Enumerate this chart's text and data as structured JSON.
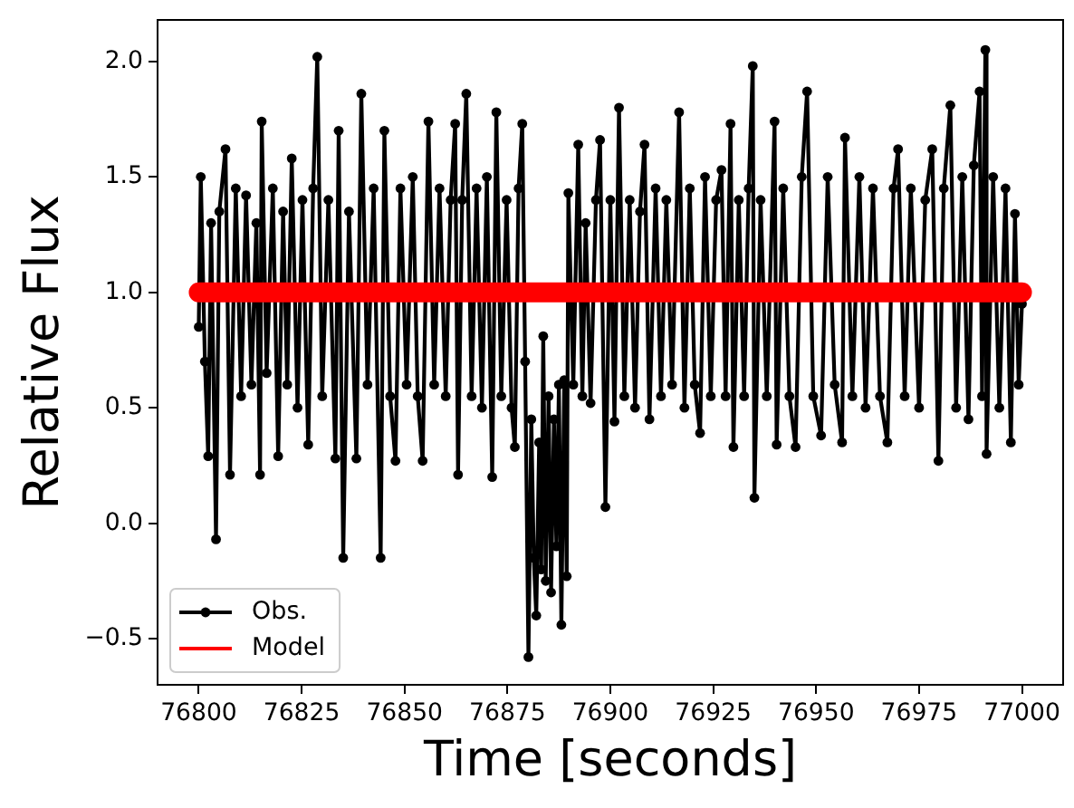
{
  "chart_data": {
    "type": "line",
    "xlabel": "Time [seconds]",
    "ylabel": "Relative Flux",
    "x": [
      76800,
      76800.5,
      76801.5,
      76802.3,
      76803,
      76804.2,
      76805,
      76806.5,
      76807.6,
      76809,
      76810.3,
      76811.5,
      76812.8,
      76814,
      76814.9,
      76815.3,
      76816.5,
      76818,
      76819.3,
      76820.5,
      76821.5,
      76822.6,
      76824,
      76825.2,
      76826.6,
      76827.8,
      76828.8,
      76830,
      76831.5,
      76833.2,
      76834,
      76835.1,
      76836.5,
      76838.3,
      76839.5,
      76841,
      76842.5,
      76844.2,
      76845.1,
      76846.5,
      76847.8,
      76849,
      76850.5,
      76852,
      76853.2,
      76854.4,
      76855.8,
      76857.2,
      76858.5,
      76860,
      76861.2,
      76862.3,
      76863,
      76864,
      76865,
      76866.3,
      76867.5,
      76868.8,
      76870,
      76871.3,
      76872.3,
      76873.5,
      76874.8,
      76876,
      76876.8,
      76877.7,
      76878.6,
      76879.3,
      76880.1,
      76880.8,
      76881.4,
      76882,
      76882.7,
      76883.2,
      76883.7,
      76884.3,
      76885,
      76885.6,
      76886.3,
      76886.9,
      76887.5,
      76888.1,
      76888.8,
      76889.4,
      76889.8,
      76891,
      76892.2,
      76893.2,
      76894,
      76895.2,
      76896.5,
      76897.5,
      76898.8,
      76900,
      76901,
      76902.1,
      76903.4,
      76904.7,
      76906,
      76907.2,
      76908.3,
      76909.5,
      76911,
      76912.3,
      76913.6,
      76915,
      76916.7,
      76918,
      76919.3,
      76920.5,
      76921.8,
      76923,
      76924.4,
      76925.7,
      76927,
      76928,
      76929.2,
      76929.9,
      76931.2,
      76932.5,
      76933.6,
      76934.6,
      76935,
      76936.5,
      76938,
      76939.9,
      76940.4,
      76942,
      76943.5,
      76945,
      76946.5,
      76947.8,
      76949.3,
      76951.2,
      76952.8,
      76954.5,
      76956.3,
      76957,
      76958.8,
      76960.5,
      76962,
      76963.8,
      76965.5,
      76967.3,
      76968.8,
      76969.9,
      76971.5,
      76973,
      76975,
      76976.5,
      76978.2,
      76979.7,
      76981,
      76982.6,
      76984,
      76985.5,
      76987,
      76988.3,
      76989.7,
      76990.3,
      76991.1,
      76991.4,
      76993,
      76994.5,
      76996,
      76997.3,
      76998.3,
      76999.2,
      77000
    ],
    "series": [
      {
        "name": "Obs.",
        "color": "#000000",
        "marker": "circle",
        "values": [
          0.85,
          1.5,
          0.7,
          0.29,
          1.3,
          -0.07,
          1.35,
          1.62,
          0.21,
          1.45,
          0.55,
          1.42,
          0.6,
          1.3,
          0.21,
          1.74,
          0.65,
          1.45,
          0.29,
          1.35,
          0.6,
          1.58,
          0.5,
          1.4,
          0.34,
          1.45,
          2.02,
          0.55,
          1.4,
          0.28,
          1.7,
          -0.15,
          1.35,
          0.28,
          1.86,
          0.6,
          1.45,
          -0.15,
          1.7,
          0.55,
          0.27,
          1.45,
          0.6,
          1.5,
          0.55,
          0.27,
          1.74,
          0.6,
          1.45,
          0.55,
          1.4,
          1.73,
          0.21,
          1.4,
          1.86,
          0.55,
          1.45,
          0.5,
          1.5,
          0.2,
          1.78,
          0.55,
          1.4,
          0.5,
          0.33,
          1.45,
          1.73,
          0.7,
          -0.58,
          0.45,
          -0.15,
          -0.4,
          0.35,
          -0.2,
          0.81,
          -0.25,
          0.55,
          -0.3,
          0.45,
          -0.1,
          0.6,
          -0.44,
          0.62,
          -0.23,
          1.43,
          0.6,
          1.64,
          0.55,
          1.3,
          0.52,
          1.4,
          1.66,
          0.07,
          1.4,
          0.44,
          1.8,
          0.55,
          1.4,
          0.5,
          1.35,
          1.64,
          0.45,
          1.45,
          0.55,
          1.4,
          0.6,
          1.78,
          0.5,
          1.45,
          0.6,
          0.39,
          1.5,
          0.55,
          1.4,
          1.53,
          0.55,
          1.73,
          0.33,
          1.4,
          0.55,
          1.45,
          1.98,
          0.11,
          1.4,
          0.55,
          1.74,
          0.34,
          1.45,
          0.55,
          0.33,
          1.5,
          1.87,
          0.55,
          0.38,
          1.5,
          0.6,
          0.35,
          1.67,
          0.55,
          1.5,
          0.5,
          1.45,
          0.55,
          0.35,
          1.45,
          1.62,
          0.55,
          1.45,
          0.5,
          1.4,
          1.62,
          0.27,
          1.45,
          1.81,
          0.5,
          1.5,
          0.45,
          1.55,
          1.87,
          0.55,
          2.05,
          0.3,
          1.5,
          0.5,
          1.45,
          0.35,
          1.34,
          0.6,
          0.95
        ]
      },
      {
        "name": "Model",
        "color": "#ff0000",
        "marker": "none",
        "x": [
          76800,
          77000
        ],
        "values": [
          1.0,
          1.0
        ]
      }
    ],
    "xlim": [
      76790,
      77010
    ],
    "xticks": [
      76800,
      76825,
      76850,
      76875,
      76900,
      76925,
      76950,
      76975,
      77000
    ],
    "ylim": [
      -0.7,
      2.18
    ],
    "yticks": [
      {
        "value": -0.5,
        "label": "−0.5"
      },
      {
        "value": 0,
        "label": "0.0"
      },
      0.5,
      {
        "value": 1,
        "label": "1.0"
      },
      1.5,
      {
        "value": 2,
        "label": "2.0"
      }
    ],
    "legend": "bottom left"
  }
}
